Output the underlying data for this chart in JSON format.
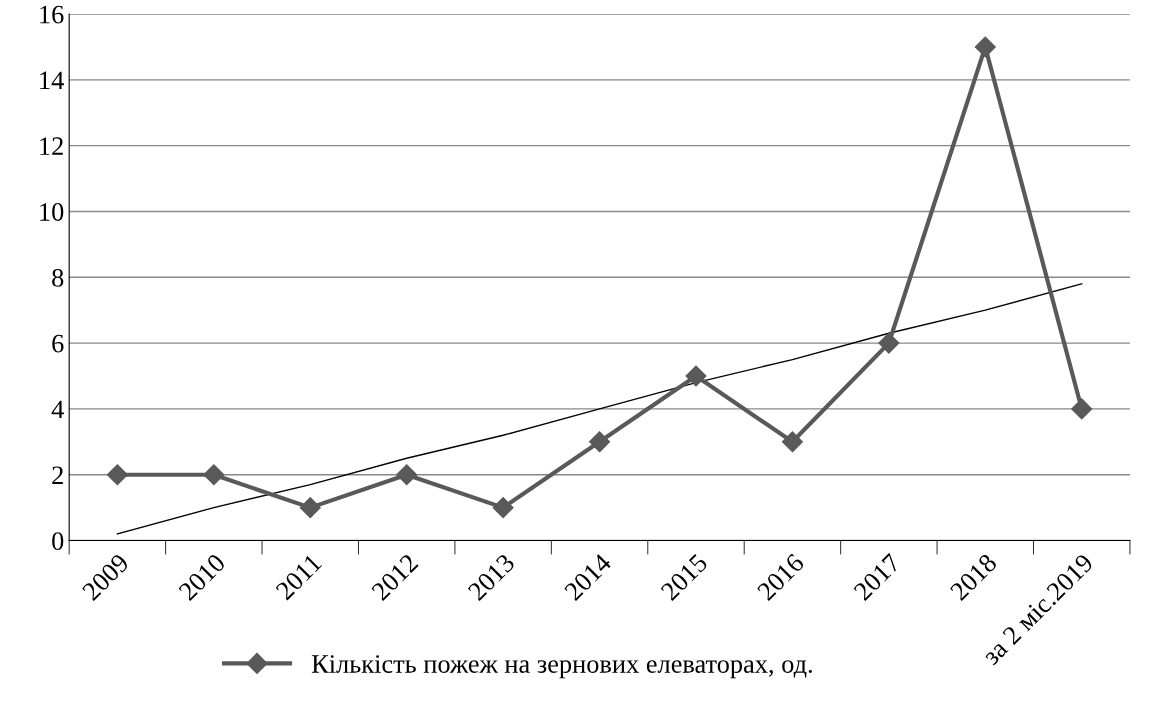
{
  "chart_data": {
    "type": "line",
    "categories": [
      "2009",
      "2010",
      "2011",
      "2012",
      "2013",
      "2014",
      "2015",
      "2016",
      "2017",
      "2018",
      "за 2 міс.2019"
    ],
    "series": [
      {
        "name": "Кількість пожеж на зернових елеваторах, од.",
        "color": "#595959",
        "marker": "diamond",
        "values": [
          2,
          2,
          1,
          2,
          1,
          3,
          5,
          3,
          6,
          15,
          4
        ]
      },
      {
        "type": "line",
        "color": "#000000",
        "marker": "none",
        "values": [
          0.2,
          1.0,
          1.7,
          2.5,
          3.2,
          4.0,
          4.8,
          5.5,
          6.3,
          7.0,
          7.8
        ]
      }
    ],
    "ylim": [
      0,
      16
    ],
    "yticks": [
      0,
      2,
      4,
      6,
      8,
      10,
      12,
      14,
      16
    ],
    "grid": "y",
    "legend": "bottom",
    "line_style": "solid"
  }
}
